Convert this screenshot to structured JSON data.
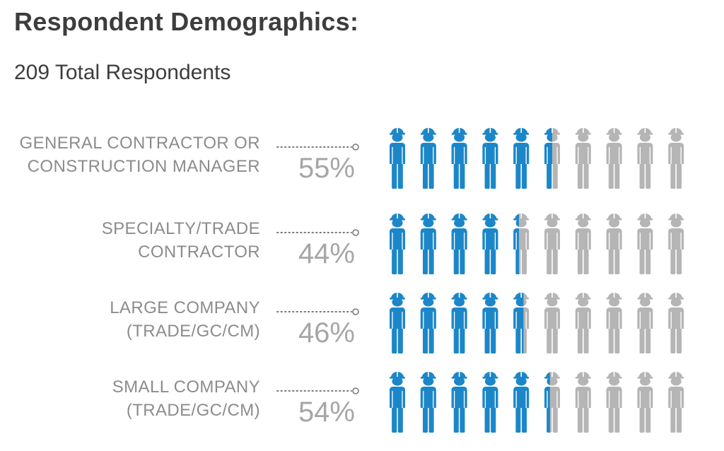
{
  "header": {
    "title": "Respondent Demographics:",
    "subtitle": "209 Total Respondents"
  },
  "colors": {
    "filled": "#1b87c9",
    "empty": "#b5b5b5",
    "label": "#8c8c8c",
    "percent": "#a6a6a6"
  },
  "chart_data": {
    "type": "bar",
    "title": "Respondent Demographics:",
    "subtitle": "209 Total Respondents",
    "icons_per_row": 10,
    "icon": "construction-worker-icon",
    "rows": [
      {
        "label_lines": [
          "GENERAL CONTRACTOR OR",
          "CONSTRUCTION MANAGER"
        ],
        "percent_label": "55%",
        "value": 55
      },
      {
        "label_lines": [
          "SPECIALTY/TRADE",
          "CONTRACTOR"
        ],
        "percent_label": "44%",
        "value": 44
      },
      {
        "label_lines": [
          "LARGE COMPANY",
          "(TRADE/GC/CM)"
        ],
        "percent_label": "46%",
        "value": 46
      },
      {
        "label_lines": [
          "SMALL COMPANY",
          "(TRADE/GC/CM)"
        ],
        "percent_label": "54%",
        "value": 54
      }
    ]
  }
}
